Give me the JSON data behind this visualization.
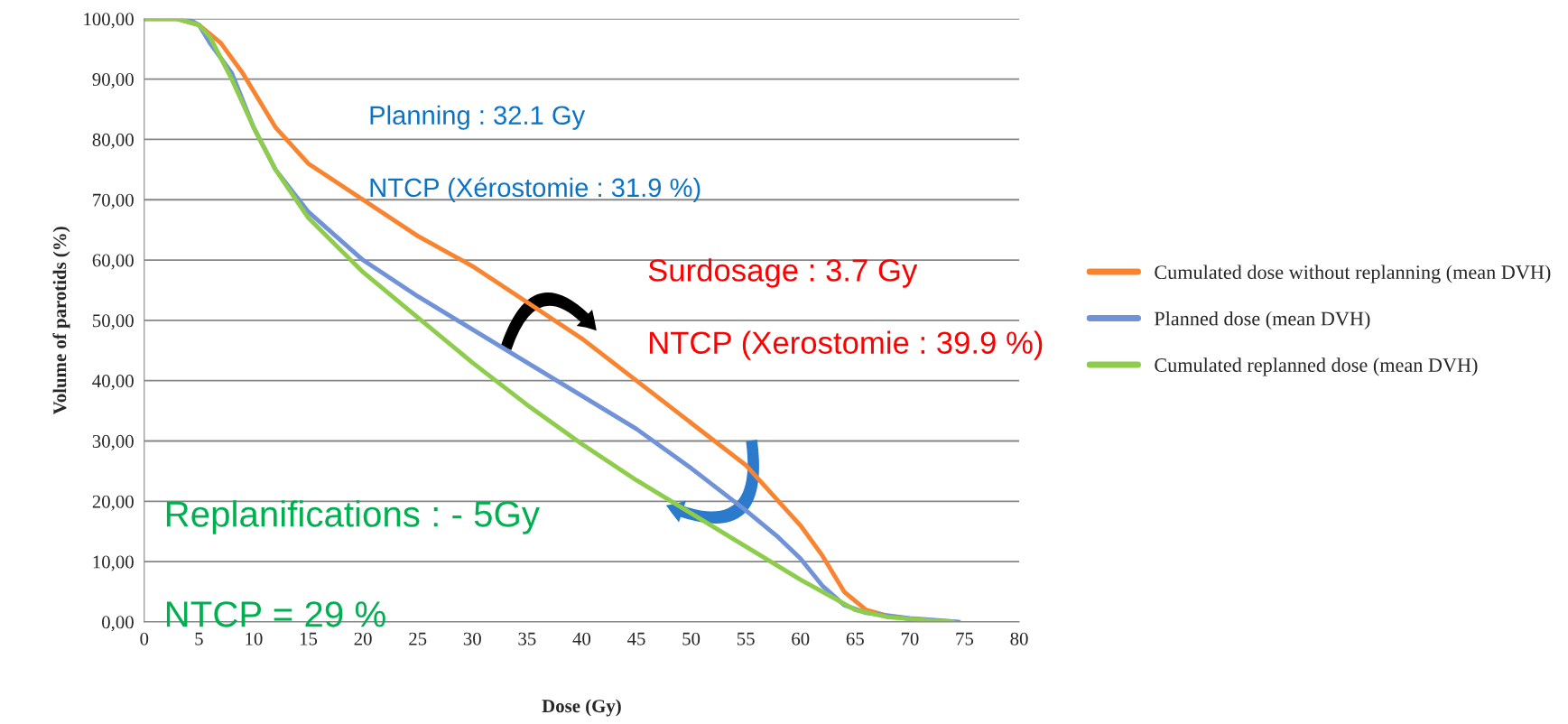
{
  "chart_data": {
    "type": "line",
    "xlabel": "Dose (Gy)",
    "ylabel": "Volume of parotids (%)",
    "xlim": [
      0,
      80
    ],
    "xticks": [
      0,
      5,
      10,
      15,
      20,
      25,
      30,
      35,
      40,
      45,
      50,
      55,
      60,
      65,
      70,
      75,
      80
    ],
    "ylim": [
      0,
      100
    ],
    "yticks": [
      {
        "value": 0,
        "label": "0,00"
      },
      {
        "value": 10,
        "label": "10,00"
      },
      {
        "value": 20,
        "label": "20,00"
      },
      {
        "value": 30,
        "label": "30,00"
      },
      {
        "value": 40,
        "label": "40,00"
      },
      {
        "value": 50,
        "label": "50,00"
      },
      {
        "value": 60,
        "label": "60,00"
      },
      {
        "value": 70,
        "label": "70,00"
      },
      {
        "value": 80,
        "label": "80,00"
      },
      {
        "value": 90,
        "label": "90,00"
      },
      {
        "value": 100,
        "label": "100,00"
      }
    ],
    "grid": "y",
    "legend": "right",
    "marker": "none",
    "line_style": "solid",
    "series": [
      {
        "name": "Cumulated dose without replanning (mean DVH)",
        "color": "#f98430",
        "x": [
          0,
          3,
          5,
          7,
          9,
          10,
          12,
          15,
          20,
          25,
          30,
          35,
          40,
          45,
          50,
          55,
          58,
          60,
          62,
          64,
          66,
          68,
          70,
          74
        ],
        "values": [
          100,
          100,
          99,
          96,
          91,
          88,
          82,
          76,
          70,
          64,
          59,
          53,
          47,
          40,
          33,
          26,
          20,
          16,
          11,
          5,
          2,
          1,
          0.5,
          0
        ]
      },
      {
        "name": "Planned dose (mean DVH)",
        "color": "#7092d8",
        "x": [
          0,
          4,
          5,
          6,
          8,
          10,
          12,
          15,
          20,
          25,
          30,
          35,
          40,
          45,
          50,
          55,
          58,
          60,
          62,
          64,
          66,
          70,
          74.5
        ],
        "values": [
          100,
          100,
          99,
          96,
          91,
          82,
          75,
          68,
          60,
          54,
          48.5,
          43,
          37.5,
          32,
          25.5,
          18.5,
          14,
          10.5,
          6,
          2.8,
          1.5,
          0.6,
          0
        ]
      },
      {
        "name": "Cumulated replanned dose (mean DVH)",
        "color": "#8ecc4c",
        "x": [
          0,
          3,
          5,
          6,
          8,
          10,
          12,
          15,
          20,
          25,
          30,
          35,
          40,
          45,
          50,
          55,
          60,
          63,
          65,
          68,
          72,
          74
        ],
        "values": [
          100,
          100,
          99,
          97,
          90,
          82,
          75,
          67,
          58,
          50.5,
          43,
          36,
          29.5,
          23.5,
          18,
          12.5,
          7,
          4,
          2,
          0.8,
          0.2,
          0
        ]
      }
    ],
    "annotations": [
      "Planning : 32.1 Gy",
      "NTCP (Xérostomie : 31.9 %)",
      "Surdosage : 3.7 Gy",
      "NTCP (Xerostomie : 39.9 %)",
      "Replanifications : - 5Gy",
      "NTCP = 29 %"
    ]
  }
}
